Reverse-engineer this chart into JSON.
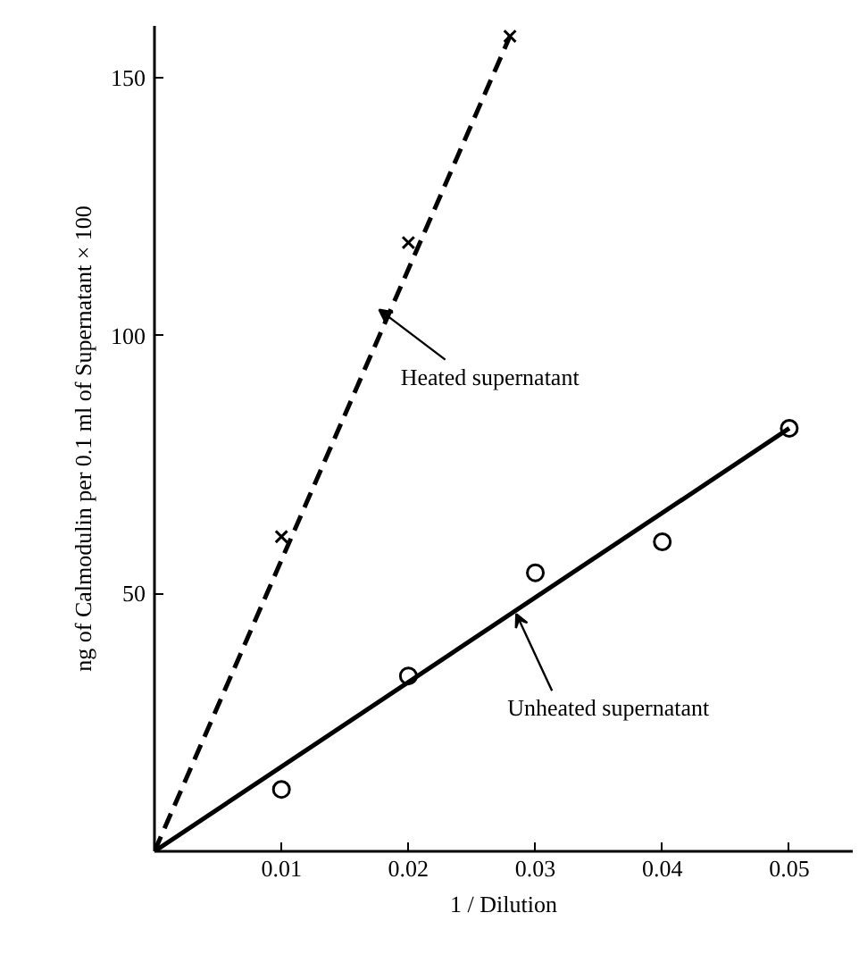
{
  "chart_data": {
    "type": "scatter",
    "xlabel": "1 / Dilution",
    "ylabel": "ng of Calmodulin per 0.1 ml of Supernatant × 100",
    "series": [
      {
        "marker": "cross",
        "color": "#000000",
        "x": [
          0.01,
          0.02,
          0.028
        ],
        "values": [
          61,
          118,
          158
        ]
      },
      {
        "type": "line",
        "line_style": "dashed",
        "marker": "none",
        "color": "#000000",
        "x": [
          0,
          0.028
        ],
        "values": [
          0,
          158
        ]
      },
      {
        "marker": "circle",
        "color": "#000000",
        "x": [
          0.01,
          0.02,
          0.03,
          0.04,
          0.05
        ],
        "values": [
          12,
          34,
          54,
          60,
          82
        ]
      },
      {
        "type": "line",
        "line_style": "solid",
        "marker": "none",
        "color": "#000000",
        "x": [
          0,
          0.05
        ],
        "values": [
          0,
          82
        ]
      }
    ],
    "annotations": [
      {
        "text": "Heated supernatant",
        "x": 0.0177,
        "y": 105
      },
      {
        "text": "Unheated supernatant",
        "x": 0.0285,
        "y": 46
      }
    ],
    "xlim": [
      0,
      0.055
    ],
    "ylim": [
      0,
      160
    ],
    "xticks": [
      0.01,
      0.02,
      0.03,
      0.04,
      0.05
    ],
    "yticks": [
      50,
      100,
      150
    ],
    "grid": false
  }
}
